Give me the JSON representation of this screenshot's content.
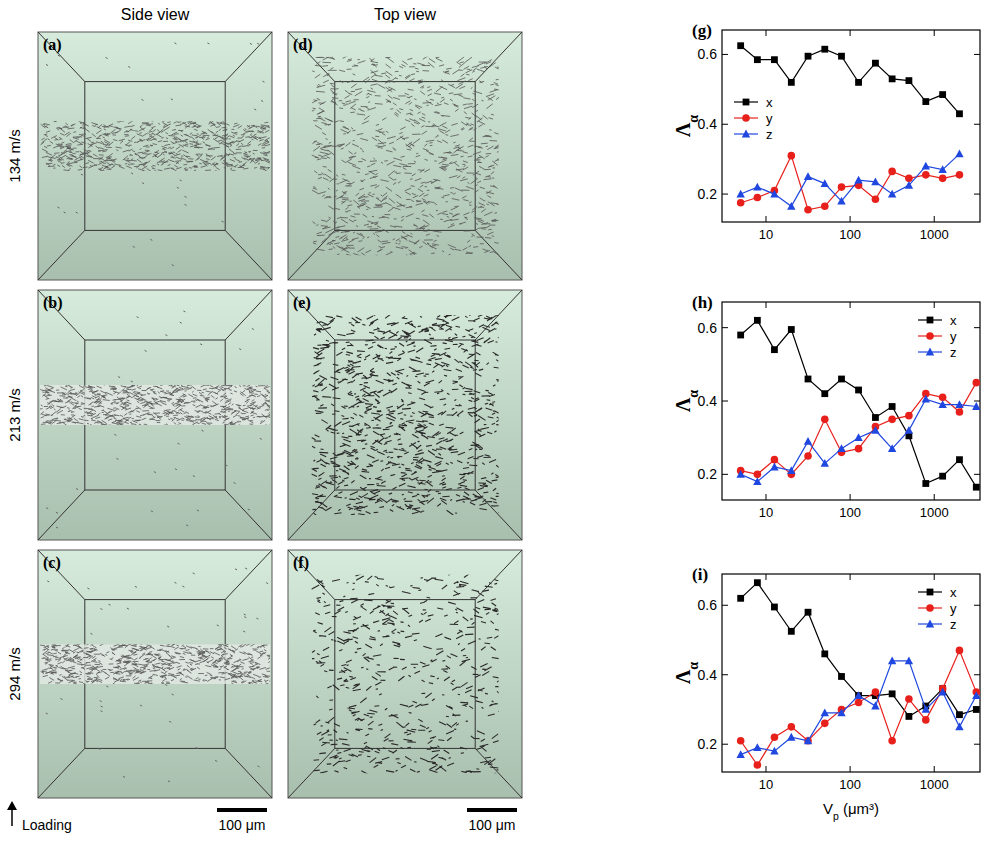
{
  "images": {
    "column_titles": [
      "Side view",
      "Top view"
    ],
    "row_labels": [
      "134 m/s",
      "213 m/s",
      "294 m/s"
    ],
    "panel_letters": [
      "(a)",
      "(b)",
      "(c)",
      "(d)",
      "(e)",
      "(f)"
    ],
    "loading_label": "Loading",
    "scale_bars": [
      "100 μm",
      "100 μm"
    ]
  },
  "chart_data": [
    {
      "type": "line",
      "label": "(g)",
      "ylabel": "Λα",
      "log": "x",
      "legend": "center left",
      "xlim": [
        3,
        3500
      ],
      "xticks": [
        10,
        100,
        1000
      ],
      "ylim": [
        0.12,
        0.67
      ],
      "yticks": [
        0.2,
        0.4,
        0.6
      ],
      "x": [
        5,
        7.9,
        12.6,
        20,
        31.6,
        50,
        79,
        126,
        200,
        316,
        500,
        794,
        1259,
        1995
      ],
      "series": [
        {
          "name": "x",
          "color": "#000000",
          "marker": "square",
          "values": [
            0.625,
            0.585,
            0.585,
            0.52,
            0.595,
            0.615,
            0.595,
            0.52,
            0.575,
            0.53,
            0.525,
            0.465,
            0.485,
            0.43
          ]
        },
        {
          "name": "y",
          "color": "#e8201c",
          "marker": "circle",
          "values": [
            0.175,
            0.19,
            0.21,
            0.31,
            0.155,
            0.165,
            0.22,
            0.225,
            0.185,
            0.265,
            0.245,
            0.255,
            0.245,
            0.255
          ]
        },
        {
          "name": "z",
          "color": "#2047e0",
          "marker": "triangle",
          "values": [
            0.2,
            0.22,
            0.2,
            0.165,
            0.25,
            0.23,
            0.18,
            0.24,
            0.235,
            0.2,
            0.225,
            0.28,
            0.27,
            0.315
          ]
        }
      ]
    },
    {
      "type": "line",
      "label": "(h)",
      "ylabel": "Λα",
      "log": "x",
      "legend": "upper right",
      "xlim": [
        3,
        3500
      ],
      "xticks": [
        10,
        100,
        1000
      ],
      "ylim": [
        0.13,
        0.67
      ],
      "yticks": [
        0.2,
        0.4,
        0.6
      ],
      "x": [
        5,
        7.9,
        12.6,
        20,
        31.6,
        50,
        79,
        126,
        200,
        316,
        500,
        794,
        1259,
        1995,
        3162
      ],
      "series": [
        {
          "name": "x",
          "color": "#000000",
          "marker": "square",
          "values": [
            0.58,
            0.62,
            0.54,
            0.595,
            0.46,
            0.42,
            0.46,
            0.43,
            0.355,
            0.385,
            0.305,
            0.175,
            0.195,
            0.24,
            0.165
          ]
        },
        {
          "name": "y",
          "color": "#e8201c",
          "marker": "circle",
          "values": [
            0.21,
            0.2,
            0.24,
            0.2,
            0.25,
            0.35,
            0.26,
            0.27,
            0.33,
            0.35,
            0.36,
            0.42,
            0.41,
            0.37,
            0.45
          ]
        },
        {
          "name": "z",
          "color": "#2047e0",
          "marker": "triangle",
          "values": [
            0.2,
            0.18,
            0.22,
            0.21,
            0.29,
            0.23,
            0.27,
            0.3,
            0.32,
            0.27,
            0.32,
            0.405,
            0.39,
            0.39,
            0.385
          ]
        }
      ]
    },
    {
      "type": "line",
      "label": "(i)",
      "ylabel": "Λα",
      "xlabel": "Vp (μm³)",
      "log": "x",
      "legend": "upper right",
      "xlim": [
        3,
        3500
      ],
      "xticks": [
        10,
        100,
        1000
      ],
      "ylim": [
        0.12,
        0.69
      ],
      "yticks": [
        0.2,
        0.4,
        0.6
      ],
      "x": [
        5,
        7.9,
        12.6,
        20,
        31.6,
        50,
        79,
        126,
        200,
        316,
        500,
        794,
        1259,
        1995,
        3162
      ],
      "series": [
        {
          "name": "x",
          "color": "#000000",
          "marker": "square",
          "values": [
            0.62,
            0.665,
            0.595,
            0.525,
            0.58,
            0.46,
            0.395,
            0.34,
            0.34,
            0.345,
            0.28,
            0.31,
            0.36,
            0.285,
            0.3
          ]
        },
        {
          "name": "y",
          "color": "#e8201c",
          "marker": "circle",
          "values": [
            0.21,
            0.14,
            0.22,
            0.25,
            0.21,
            0.26,
            0.3,
            0.32,
            0.35,
            0.21,
            0.33,
            0.27,
            0.36,
            0.47,
            0.35
          ]
        },
        {
          "name": "z",
          "color": "#2047e0",
          "marker": "triangle",
          "values": [
            0.17,
            0.19,
            0.18,
            0.22,
            0.21,
            0.29,
            0.29,
            0.34,
            0.31,
            0.44,
            0.44,
            0.3,
            0.35,
            0.25,
            0.34
          ]
        }
      ]
    }
  ]
}
